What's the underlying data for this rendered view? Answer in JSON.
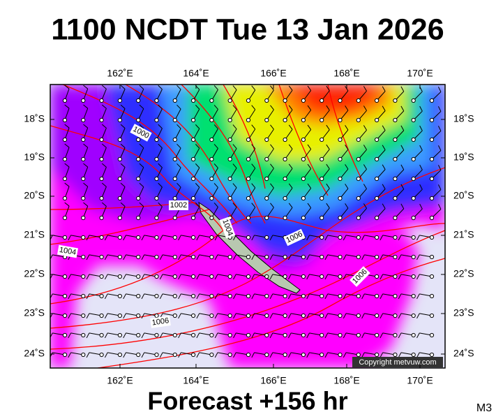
{
  "header": {
    "title": "1100 NCDT Tue 13 Jan 2026"
  },
  "map": {
    "lon_labels": [
      "162˚E",
      "164˚E",
      "166˚E",
      "168˚E",
      "170˚E"
    ],
    "lat_labels": [
      "18˚S",
      "19˚S",
      "20˚S",
      "21˚S",
      "22˚S",
      "23˚S",
      "24˚S"
    ],
    "isobar_labels": [
      "1000",
      "1002",
      "1004",
      "1004",
      "1006",
      "1006",
      "1006"
    ],
    "copyright": "Copyright metvuw.com"
  },
  "footer": {
    "forecast": "Forecast +156 hr",
    "code": "M3"
  }
}
